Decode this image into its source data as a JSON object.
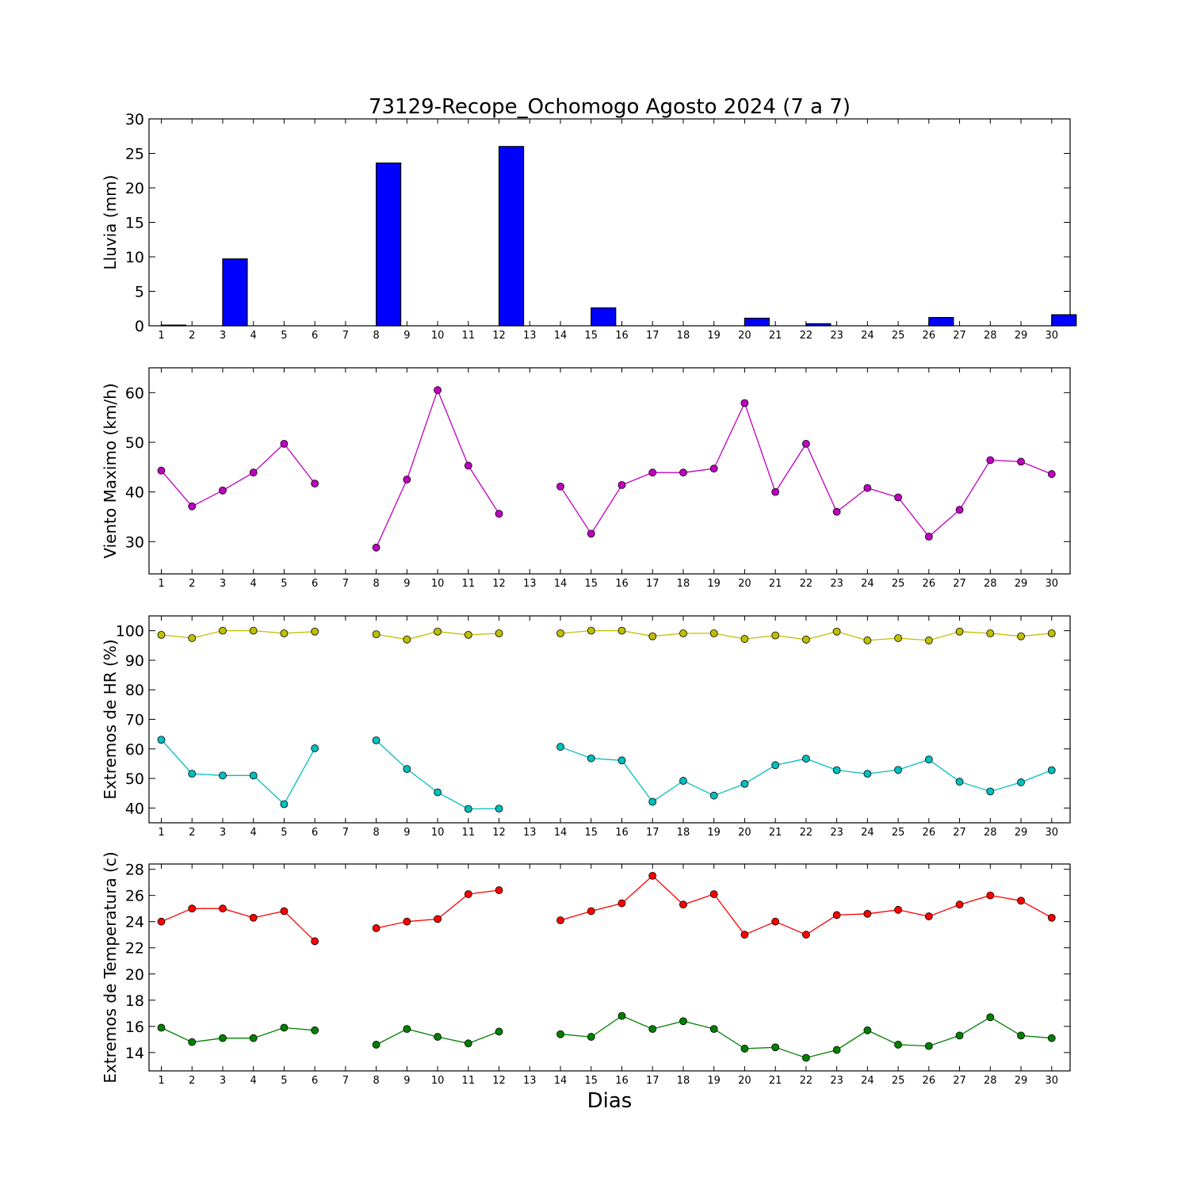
{
  "figure": {
    "title": "73129-Recope_Ochomogo Agosto 2024  (7 a 7)",
    "xlabel": "Dias"
  },
  "chart_data": [
    {
      "type": "bar",
      "ylabel": "Lluvia (mm)",
      "ylim": [
        0,
        30
      ],
      "yticks": [
        0,
        5,
        10,
        15,
        20,
        25,
        30
      ],
      "categories": [
        1,
        2,
        3,
        4,
        5,
        6,
        7,
        8,
        9,
        10,
        11,
        12,
        13,
        14,
        15,
        16,
        17,
        18,
        19,
        20,
        21,
        22,
        23,
        24,
        25,
        26,
        27,
        28,
        29,
        30
      ],
      "values": [
        0.1,
        0,
        9.7,
        0,
        0,
        0,
        0,
        23.6,
        0,
        0,
        0,
        26,
        0,
        0,
        2.6,
        0,
        0,
        0,
        0,
        1.1,
        0,
        0.3,
        0,
        0,
        0,
        1.2,
        0,
        0,
        0,
        1.6
      ],
      "color": "#0000ff"
    },
    {
      "type": "line",
      "ylabel": "Viento Maximo (km/h)",
      "ylim": [
        23.5,
        65
      ],
      "yticks": [
        30,
        40,
        50,
        60
      ],
      "x": [
        1,
        2,
        3,
        4,
        5,
        6,
        7,
        8,
        9,
        10,
        11,
        12,
        13,
        14,
        15,
        16,
        17,
        18,
        19,
        20,
        21,
        22,
        23,
        24,
        25,
        26,
        27,
        28,
        29,
        30
      ],
      "series": [
        {
          "color": "#bf00bf",
          "values": [
            44.3,
            37.1,
            40.3,
            43.9,
            49.7,
            41.7,
            null,
            28.8,
            42.5,
            60.5,
            45.3,
            35.6,
            null,
            41.1,
            31.6,
            41.4,
            43.9,
            43.9,
            44.7,
            57.9,
            40,
            49.7,
            36,
            40.8,
            38.9,
            31,
            36.4,
            46.4,
            46.1,
            43.6
          ]
        }
      ]
    },
    {
      "type": "line",
      "ylabel": "Extremos de HR (%)",
      "ylim": [
        35,
        105
      ],
      "yticks": [
        40,
        50,
        60,
        70,
        80,
        90,
        100
      ],
      "x": [
        1,
        2,
        3,
        4,
        5,
        6,
        7,
        8,
        9,
        10,
        11,
        12,
        13,
        14,
        15,
        16,
        17,
        18,
        19,
        20,
        21,
        22,
        23,
        24,
        25,
        26,
        27,
        28,
        29,
        30
      ],
      "series": [
        {
          "color": "#bfbf00",
          "values": [
            98.6,
            97.5,
            100,
            100,
            99.1,
            99.7,
            null,
            98.8,
            97,
            99.7,
            98.6,
            99.1,
            null,
            99.1,
            100,
            100,
            98.1,
            99.1,
            99.1,
            97.2,
            98.4,
            97,
            99.7,
            96.7,
            97.5,
            96.7,
            99.7,
            99.1,
            98.1,
            99.1
          ]
        },
        {
          "color": "#00bfbf",
          "values": [
            63.1,
            51.6,
            51,
            51,
            41.3,
            60.2,
            null,
            62.9,
            53.2,
            45.3,
            39.7,
            39.8,
            null,
            60.7,
            56.8,
            56.1,
            42.1,
            49.2,
            44.2,
            48.2,
            54.5,
            56.7,
            52.8,
            51.6,
            52.9,
            56.4,
            48.9,
            45.6,
            48.7,
            52.8
          ]
        }
      ]
    },
    {
      "type": "line",
      "ylabel": "Extremos de Temperatura (c)",
      "ylim": [
        12.6,
        28.4
      ],
      "yticks": [
        14,
        16,
        18,
        20,
        22,
        24,
        26,
        28
      ],
      "x": [
        1,
        2,
        3,
        4,
        5,
        6,
        7,
        8,
        9,
        10,
        11,
        12,
        13,
        14,
        15,
        16,
        17,
        18,
        19,
        20,
        21,
        22,
        23,
        24,
        25,
        26,
        27,
        28,
        29,
        30
      ],
      "series": [
        {
          "color": "#ff0000",
          "values": [
            24,
            25,
            25,
            24.3,
            24.8,
            22.5,
            null,
            23.5,
            24,
            24.2,
            26.1,
            26.4,
            null,
            24.1,
            24.8,
            25.4,
            27.5,
            25.3,
            26.1,
            23,
            24,
            23,
            24.5,
            24.6,
            24.9,
            24.4,
            25.3,
            26,
            25.6,
            24.3
          ]
        },
        {
          "color": "#008000",
          "values": [
            15.9,
            14.8,
            15.1,
            15.1,
            15.9,
            15.7,
            null,
            14.6,
            15.8,
            15.2,
            14.7,
            15.6,
            null,
            15.4,
            15.2,
            16.8,
            15.8,
            16.4,
            15.8,
            14.3,
            14.4,
            13.6,
            14.2,
            15.7,
            14.6,
            14.5,
            15.3,
            16.7,
            15.3,
            15.1
          ]
        }
      ]
    }
  ]
}
